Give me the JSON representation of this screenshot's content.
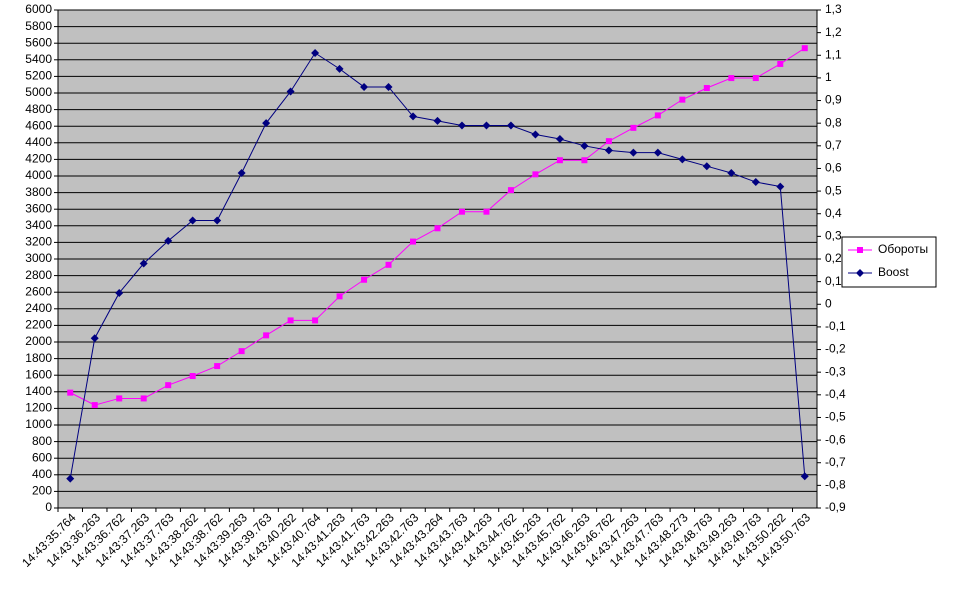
{
  "chart_data": {
    "type": "line",
    "categories": [
      "14:43:35.764",
      "14:43:36.263",
      "14:43:36.762",
      "14:43:37.263",
      "14:43:37.763",
      "14:43:38.262",
      "14:43:38.762",
      "14:43:39.263",
      "14:43:39.763",
      "14:43:40.262",
      "14:43:40.764",
      "14:43:41.263",
      "14:43:41.763",
      "14:43:42.263",
      "14:43:42.763",
      "14:43:43.264",
      "14:43:43.763",
      "14:43:44.263",
      "14:43:44.762",
      "14:43:45.263",
      "14:43:45.762",
      "14:43:46.263",
      "14:43:46.762",
      "14:43:47.263",
      "14:43:47.763",
      "14:43:48.273",
      "14:43:48.763",
      "14:43:49.263",
      "14:43:49.763",
      "14:43:50.262",
      "14:43:50.763"
    ],
    "series": [
      {
        "name": "Обороты",
        "color": "#ff00ff",
        "marker": "square",
        "values": [
          1390,
          1240,
          1320,
          1320,
          1480,
          1590,
          1710,
          1890,
          2080,
          2260,
          2260,
          2550,
          2750,
          2930,
          3210,
          3370,
          3570,
          3570,
          3830,
          4020,
          4190,
          4190,
          4420,
          4580,
          4730,
          4920,
          5060,
          5180,
          5180,
          5350,
          5540
        ]
      },
      {
        "name": "Boost",
        "color": "#000080",
        "marker": "diamond",
        "axis": "y2",
        "values": [
          -0.77,
          -0.15,
          0.05,
          0.18,
          0.28,
          0.37,
          0.37,
          0.58,
          0.8,
          0.94,
          1.11,
          1.04,
          0.96,
          0.96,
          0.83,
          0.81,
          0.79,
          0.79,
          0.79,
          0.75,
          0.73,
          0.7,
          0.68,
          0.67,
          0.67,
          0.64,
          0.61,
          0.58,
          0.54,
          0.52,
          -0.76
        ]
      }
    ],
    "ylim": [
      0,
      6000
    ],
    "yticks": [
      0,
      200,
      400,
      600,
      800,
      1000,
      1200,
      1400,
      1600,
      1800,
      2000,
      2200,
      2400,
      2600,
      2800,
      3000,
      3200,
      3400,
      3600,
      3800,
      4000,
      4200,
      4400,
      4600,
      4800,
      5000,
      5200,
      5400,
      5600,
      5800,
      6000
    ],
    "y2lim": [
      -0.9,
      1.3
    ],
    "y2ticks": [
      {
        "value": -0.9,
        "label": "-0,9"
      },
      {
        "value": -0.8,
        "label": "-0,8"
      },
      {
        "value": -0.7,
        "label": "-0,7"
      },
      {
        "value": -0.6,
        "label": "-0,6"
      },
      {
        "value": -0.5,
        "label": "-0,5"
      },
      {
        "value": -0.4,
        "label": "-0,4"
      },
      {
        "value": -0.3,
        "label": "-0,3"
      },
      {
        "value": -0.2,
        "label": "-0,2"
      },
      {
        "value": -0.1,
        "label": "-0,1"
      },
      0,
      {
        "value": 0.1,
        "label": "0,1"
      },
      {
        "value": 0.2,
        "label": "0,2"
      },
      {
        "value": 0.3,
        "label": "0,3"
      },
      {
        "value": 0.4,
        "label": "0,4"
      },
      {
        "value": 0.5,
        "label": "0,5"
      },
      {
        "value": 0.6,
        "label": "0,6"
      },
      {
        "value": 0.7,
        "label": "0,7"
      },
      {
        "value": 0.8,
        "label": "0,8"
      },
      {
        "value": 0.9,
        "label": "0,9"
      },
      {
        "value": 1,
        "label": "1"
      },
      {
        "value": 1.1,
        "label": "1,1"
      },
      {
        "value": 1.2,
        "label": "1,2"
      },
      {
        "value": 1.3,
        "label": "1,3"
      }
    ],
    "grid": true,
    "plot_background": "#c0c0c0",
    "legend": "right"
  }
}
